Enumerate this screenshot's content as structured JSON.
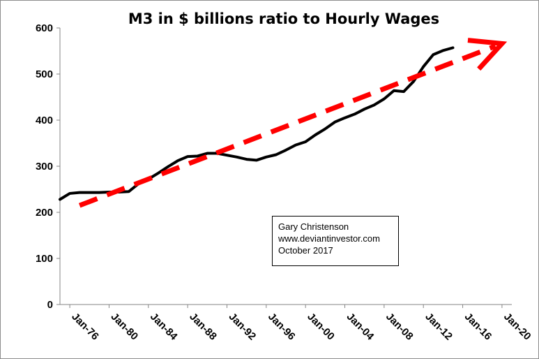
{
  "chart_data": {
    "type": "line",
    "title": "M3 in $ billions ratio to Hourly Wages",
    "xlabel": "",
    "ylabel": "",
    "ylim": [
      0,
      600
    ],
    "yticks": [
      0,
      100,
      200,
      300,
      400,
      500,
      600
    ],
    "xlim": [
      "1975-01",
      "2021-01"
    ],
    "xticks": [
      "Jan-76",
      "Jan-80",
      "Jan-84",
      "Jan-88",
      "Jan-92",
      "Jan-96",
      "Jan-00",
      "Jan-04",
      "Jan-08",
      "Jan-12",
      "Jan-16",
      "Jan-20"
    ],
    "grid": false,
    "legend": "none",
    "series": [
      {
        "color": "#000000",
        "style": "solid",
        "points": [
          [
            "1975-01",
            228
          ],
          [
            "1976-01",
            241
          ],
          [
            "1977-01",
            243
          ],
          [
            "1978-01",
            243
          ],
          [
            "1979-01",
            243
          ],
          [
            "1980-01",
            244
          ],
          [
            "1981-01",
            244
          ],
          [
            "1982-01",
            245
          ],
          [
            "1983-01",
            262
          ],
          [
            "1984-01",
            272
          ],
          [
            "1985-01",
            285
          ],
          [
            "1986-01",
            299
          ],
          [
            "1987-01",
            312
          ],
          [
            "1988-01",
            321
          ],
          [
            "1989-01",
            322
          ],
          [
            "1990-01",
            328
          ],
          [
            "1991-01",
            328
          ],
          [
            "1992-01",
            324
          ],
          [
            "1993-01",
            320
          ],
          [
            "1994-01",
            315
          ],
          [
            "1995-01",
            313
          ],
          [
            "1996-01",
            320
          ],
          [
            "1997-01",
            325
          ],
          [
            "1998-01",
            335
          ],
          [
            "1999-01",
            346
          ],
          [
            "2000-01",
            353
          ],
          [
            "2001-01",
            368
          ],
          [
            "2002-01",
            381
          ],
          [
            "2003-01",
            396
          ],
          [
            "2004-01",
            405
          ],
          [
            "2005-01",
            413
          ],
          [
            "2006-01",
            424
          ],
          [
            "2007-01",
            433
          ],
          [
            "2008-01",
            446
          ],
          [
            "2009-01",
            464
          ],
          [
            "2010-01",
            462
          ],
          [
            "2011-01",
            484
          ],
          [
            "2012-01",
            516
          ],
          [
            "2013-01",
            542
          ],
          [
            "2014-01",
            551
          ],
          [
            "2015-01",
            557
          ]
        ]
      },
      {
        "color": "#ff0000",
        "style": "dashed-arrow",
        "points": [
          [
            "1977-01",
            215
          ],
          [
            "2020-01",
            566
          ]
        ]
      }
    ]
  },
  "annotation": {
    "lines": [
      "Gary Christenson",
      "www.deviantinvestor.com",
      "October 2017"
    ]
  }
}
